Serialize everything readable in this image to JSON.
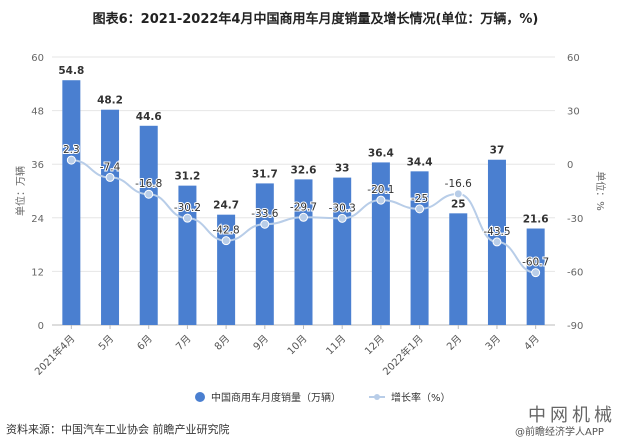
{
  "title": "图表6：2021-2022年4月中国商用车月度销量及增长情况(单位：万辆，%)",
  "source": "资料来源：中国汽车工业协会 前瞻产业研究院",
  "watermark": {
    "line1": "中网机械",
    "line2": "@前瞻经济学人APP"
  },
  "legend": {
    "bar": "中国商用车月度销量（万辆）",
    "line": "增长率（%）"
  },
  "colors": {
    "bar": "#4a7fd0",
    "line": "#b8cde8",
    "grid": "#e6e6e6"
  },
  "chart_data": {
    "type": "bar+line",
    "title": "图表6：2021-2022年4月中国商用车月度销量及增长情况(单位：万辆，%)",
    "categories": [
      "2021年4月",
      "5月",
      "6月",
      "7月",
      "8月",
      "9月",
      "10月",
      "11月",
      "12月",
      "2022年1月",
      "2月",
      "3月",
      "4月"
    ],
    "series": [
      {
        "name": "中国商用车月度销量（万辆）",
        "type": "bar",
        "axis": "left",
        "values": [
          54.8,
          48.2,
          44.6,
          31.2,
          24.7,
          31.7,
          32.6,
          33,
          36.4,
          34.4,
          25,
          37,
          21.6
        ]
      },
      {
        "name": "增长率（%）",
        "type": "line",
        "axis": "right",
        "values": [
          2.3,
          -7.4,
          -16.8,
          -30.2,
          -42.8,
          -33.6,
          -29.7,
          -30.3,
          -20.1,
          -25,
          -16.6,
          -43.5,
          -60.7
        ]
      }
    ],
    "ylabel": "单位：万辆",
    "y2label": "单位：%",
    "ylim": [
      0,
      60
    ],
    "yticks": [
      0,
      12,
      24,
      36,
      48,
      60
    ],
    "y2lim": [
      -90,
      60
    ],
    "y2ticks": [
      -90,
      -60,
      -30,
      0,
      30,
      60
    ],
    "grid": true,
    "legend_position": "bottom"
  }
}
